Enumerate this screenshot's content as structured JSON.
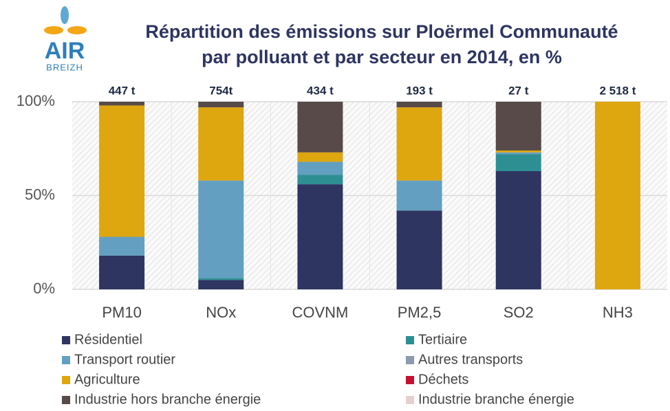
{
  "logo": {
    "name": "AIR",
    "sub": "BREIZH"
  },
  "chart_data": {
    "type": "stacked_bar",
    "title": "Répartition des émissions sur Ploërmel Communauté par polluant et par secteur en 2014, en %",
    "categories": [
      "PM10",
      "NOx",
      "COVNM",
      "PM2,5",
      "SO2",
      "NH3"
    ],
    "totals": [
      "447 t",
      "754t",
      "434 t",
      "193 t",
      "27 t",
      "2 518 t"
    ],
    "series": [
      {
        "name": "Résidentiel",
        "color": "#2e3561",
        "values": [
          18,
          5,
          56,
          42,
          63,
          0
        ]
      },
      {
        "name": "Tertiaire",
        "color": "#2e8f93",
        "values": [
          0,
          1,
          5,
          0,
          9,
          0
        ]
      },
      {
        "name": "Transport routier",
        "color": "#639fc0",
        "values": [
          10,
          52,
          7,
          16,
          1,
          0
        ]
      },
      {
        "name": "Autres transports",
        "color": "#8a9bb0",
        "values": [
          0,
          0,
          0,
          0,
          0,
          0
        ]
      },
      {
        "name": "Agriculture",
        "color": "#dea60f",
        "values": [
          70,
          39,
          5,
          39,
          1,
          100
        ]
      },
      {
        "name": "Déchets",
        "color": "#c8102e",
        "values": [
          0,
          0,
          0,
          0,
          0,
          0
        ]
      },
      {
        "name": "Industrie hors branche énergie",
        "color": "#574a48",
        "values": [
          2,
          3,
          27,
          3,
          26,
          0
        ]
      },
      {
        "name": "Industrie branche énergie",
        "color": "#e8cfcf",
        "values": [
          0,
          0,
          0,
          0,
          0,
          0
        ]
      }
    ],
    "ylim": [
      0,
      100
    ],
    "yticks": [
      {
        "value": 0,
        "label": "0%"
      },
      {
        "value": 50,
        "label": "50%"
      },
      {
        "value": 100,
        "label": "100%"
      }
    ],
    "grid": true
  }
}
